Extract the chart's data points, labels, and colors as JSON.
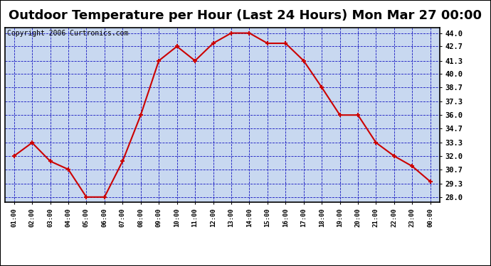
{
  "title": "Outdoor Temperature per Hour (Last 24 Hours) Mon Mar 27 00:00",
  "copyright": "Copyright 2006 Curtronics.com",
  "x_labels": [
    "01:00",
    "02:00",
    "03:00",
    "04:00",
    "05:00",
    "06:00",
    "07:00",
    "08:00",
    "09:00",
    "10:00",
    "11:00",
    "12:00",
    "13:00",
    "14:00",
    "15:00",
    "16:00",
    "17:00",
    "18:00",
    "19:00",
    "20:00",
    "21:00",
    "22:00",
    "23:00",
    "00:00"
  ],
  "y_values": [
    32.0,
    33.3,
    31.5,
    30.7,
    28.0,
    28.0,
    31.5,
    36.0,
    41.3,
    42.7,
    41.3,
    43.0,
    44.0,
    44.0,
    43.0,
    43.0,
    41.3,
    38.7,
    36.0,
    36.0,
    33.3,
    32.0,
    31.0,
    29.5
  ],
  "y_ticks": [
    28.0,
    29.3,
    30.7,
    32.0,
    33.3,
    34.7,
    36.0,
    37.3,
    38.7,
    40.0,
    41.3,
    42.7,
    44.0
  ],
  "ylim": [
    27.5,
    44.5
  ],
  "line_color": "#cc0000",
  "marker_color": "#cc0000",
  "plot_bg_color": "#c8d8f0",
  "grid_color": "#0000bb",
  "title_fontsize": 13,
  "copyright_fontsize": 7
}
